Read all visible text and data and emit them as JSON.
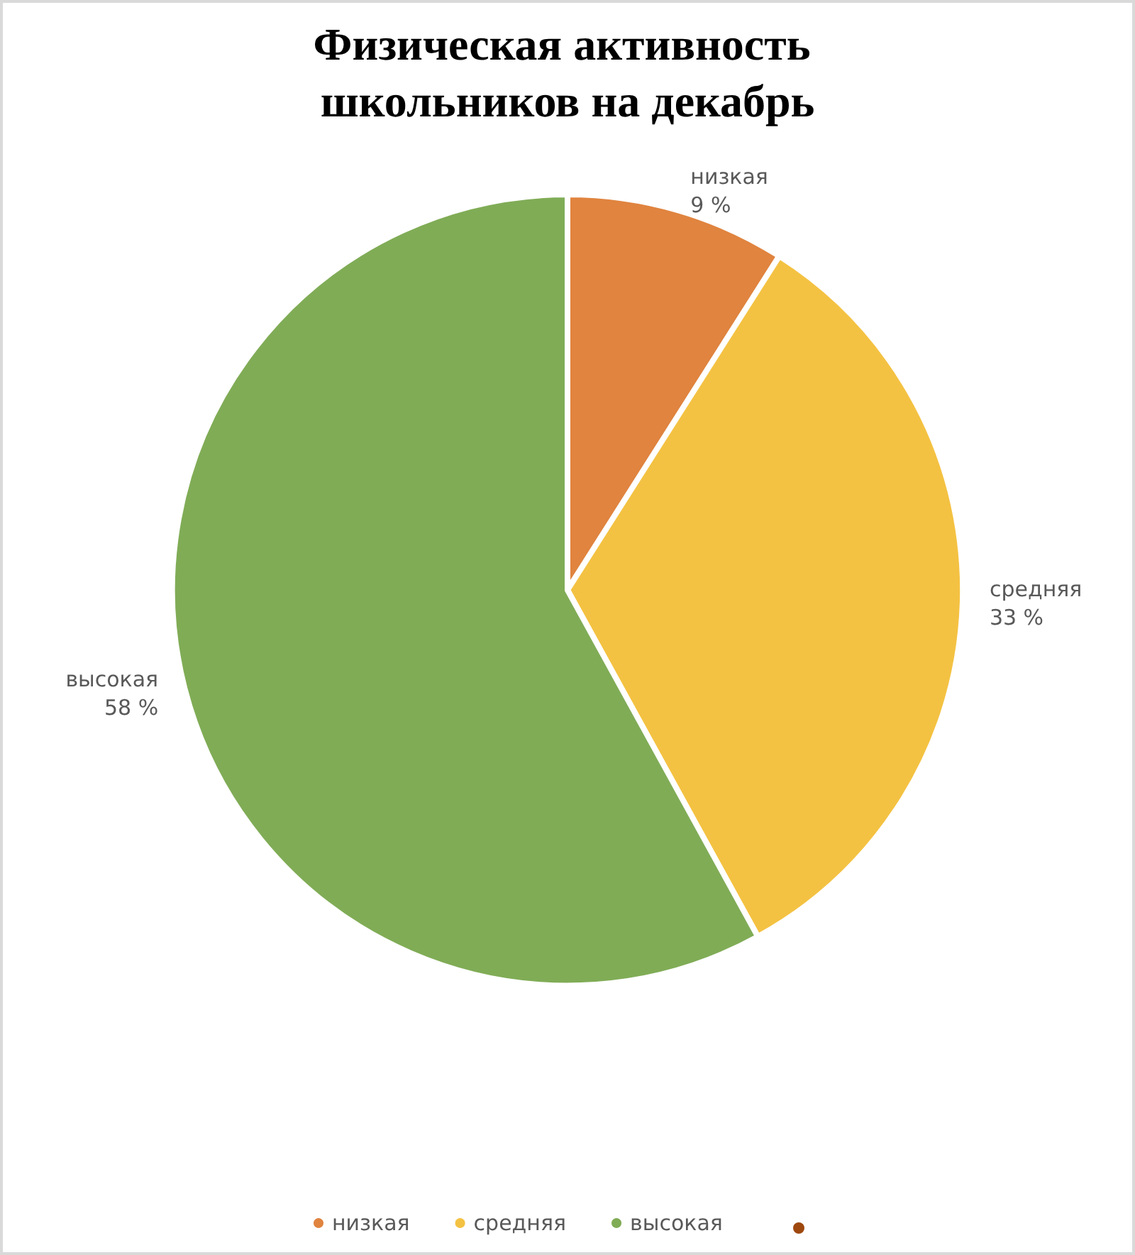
{
  "chart_data": {
    "type": "pie",
    "title": "Физическая активность школьников на декабрь",
    "categories": [
      "низкая",
      "средняя",
      "высокая"
    ],
    "values": [
      9,
      33,
      58
    ],
    "value_labels": [
      "9 %",
      "33 %",
      "58 %"
    ],
    "colors": [
      "#e0843f",
      "#f4c242",
      "#80ac56"
    ],
    "legend": "bottom"
  }
}
